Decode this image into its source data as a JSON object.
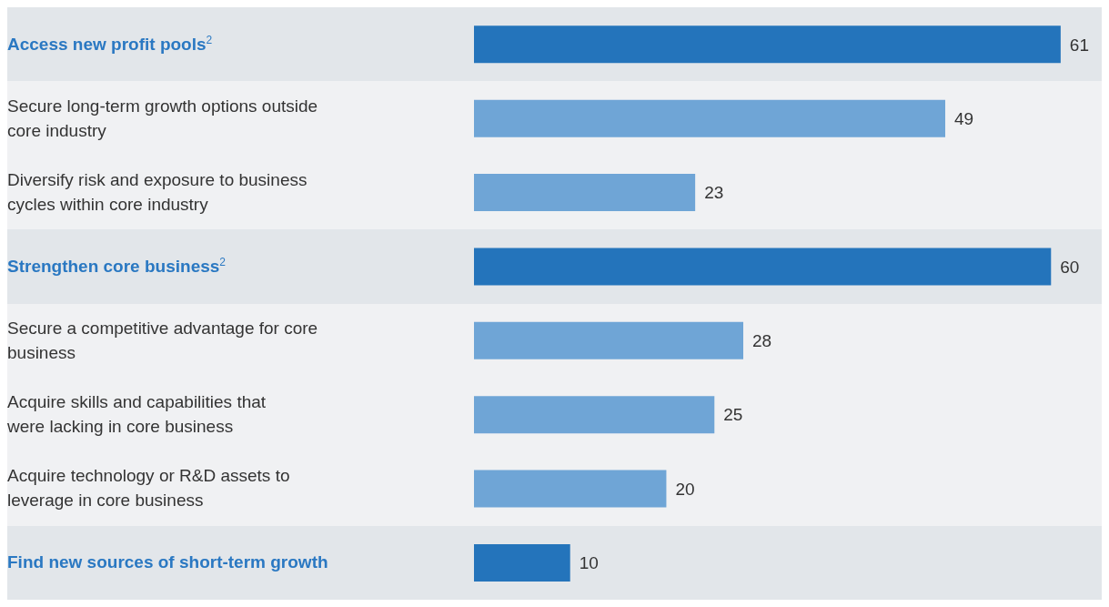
{
  "chart_data": {
    "type": "bar",
    "orientation": "horizontal",
    "stacked": true,
    "categories": [
      "Access new profit pools$^{2}$",
      "Secure long-term growth options outside core industry",
      "Diversify risk and exposure to business cycles within core industry",
      "Strengthen core business$^{2}$",
      "Secure a competitive advantage for core business",
      "Acquire skills and capabilities that were lacking in core business",
      "Acquire technology or R&D assets to leverage in core business",
      "Find new sources of short-term growth"
    ],
    "series": [
      {
        "color": "#2474bb",
        "values": [
          61,
          null,
          null,
          60,
          null,
          null,
          null,
          10
        ]
      },
      {
        "color": "#6fa5d6",
        "values": [
          null,
          49,
          23,
          null,
          28,
          25,
          20,
          null
        ]
      }
    ],
    "data_labels": true,
    "grid": false,
    "legend": false
  }
}
